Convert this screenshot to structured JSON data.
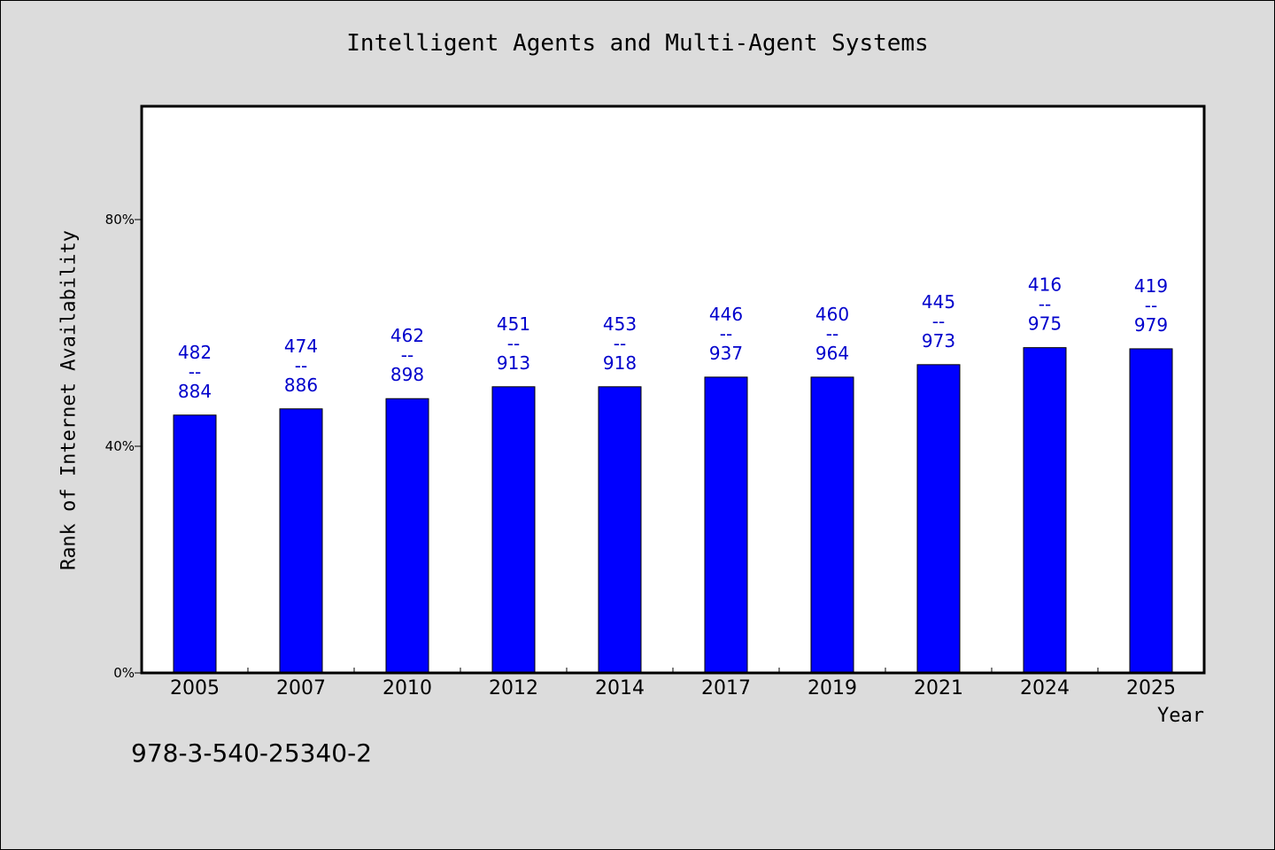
{
  "colors": {
    "background": "#dcdcdc",
    "plot_background": "#ffffff",
    "bar": "#0000ff",
    "data_label": "#0000cc"
  },
  "footnote": "978-3-540-25340-2",
  "chart_data": {
    "type": "bar",
    "title": "Intelligent Agents and Multi-Agent Systems",
    "xlabel": "Year",
    "ylabel": "Rank of Internet Availability",
    "ylim": [
      0,
      100
    ],
    "yticks": [
      0,
      40,
      80
    ],
    "ytick_labels": [
      "0%",
      "40%",
      "80%"
    ],
    "grid": false,
    "categories": [
      "2005",
      "2007",
      "2010",
      "2012",
      "2014",
      "2017",
      "2019",
      "2021",
      "2024",
      "2025"
    ],
    "values": [
      45.5,
      46.6,
      48.4,
      50.5,
      50.5,
      52.2,
      52.2,
      54.4,
      57.4,
      57.2
    ],
    "data_labels": [
      {
        "top": "482",
        "sep": "--",
        "bottom": "884"
      },
      {
        "top": "474",
        "sep": "--",
        "bottom": "886"
      },
      {
        "top": "462",
        "sep": "--",
        "bottom": "898"
      },
      {
        "top": "451",
        "sep": "--",
        "bottom": "913"
      },
      {
        "top": "453",
        "sep": "--",
        "bottom": "918"
      },
      {
        "top": "446",
        "sep": "--",
        "bottom": "937"
      },
      {
        "top": "460",
        "sep": "--",
        "bottom": "964"
      },
      {
        "top": "445",
        "sep": "--",
        "bottom": "973"
      },
      {
        "top": "416",
        "sep": "--",
        "bottom": "975"
      },
      {
        "top": "419",
        "sep": "--",
        "bottom": "979"
      }
    ]
  }
}
